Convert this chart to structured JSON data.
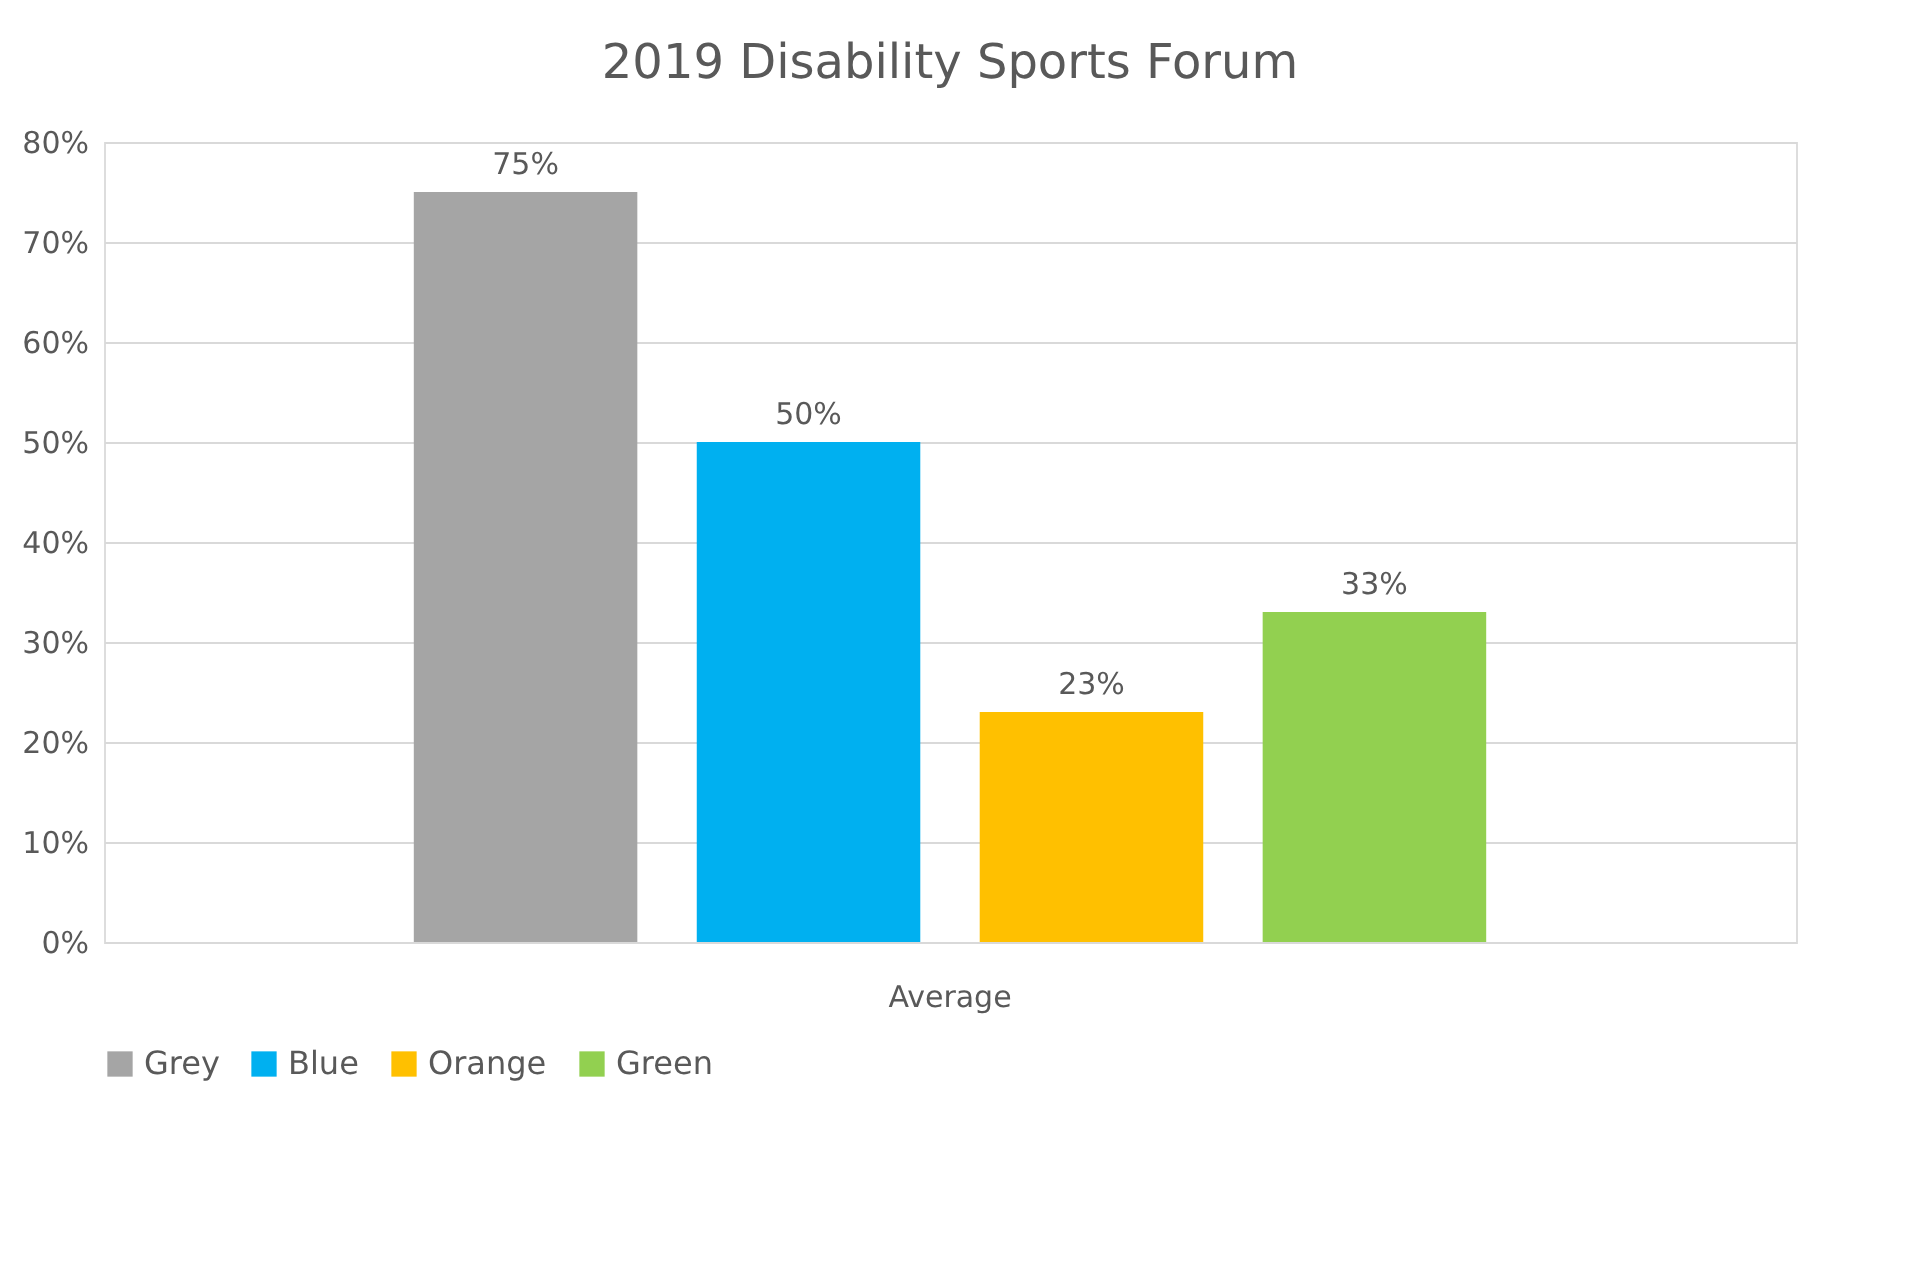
{
  "chart_data": {
    "type": "bar",
    "title": "2019 Disability Sports Forum",
    "categories": [
      "Average"
    ],
    "series": [
      {
        "name": "Grey",
        "color": "#a5a5a5",
        "values": [
          75
        ],
        "value_labels": [
          "75%"
        ]
      },
      {
        "name": "Blue",
        "color": "#00b0f0",
        "values": [
          50
        ],
        "value_labels": [
          "50%"
        ]
      },
      {
        "name": "Orange",
        "color": "#ffc000",
        "values": [
          23
        ],
        "value_labels": [
          "23%"
        ]
      },
      {
        "name": "Green",
        "color": "#92d050",
        "values": [
          33
        ],
        "value_labels": [
          "33%"
        ]
      }
    ],
    "ylim": [
      0,
      80
    ],
    "yticks": [
      {
        "value": 0,
        "label": "0%"
      },
      {
        "value": 10,
        "label": "10%"
      },
      {
        "value": 20,
        "label": "20%"
      },
      {
        "value": 30,
        "label": "30%"
      },
      {
        "value": 40,
        "label": "40%"
      },
      {
        "value": 50,
        "label": "50%"
      },
      {
        "value": 60,
        "label": "60%"
      },
      {
        "value": 70,
        "label": "70%"
      },
      {
        "value": 80,
        "label": "80%"
      }
    ],
    "grid": "y",
    "legend": "bottom"
  }
}
